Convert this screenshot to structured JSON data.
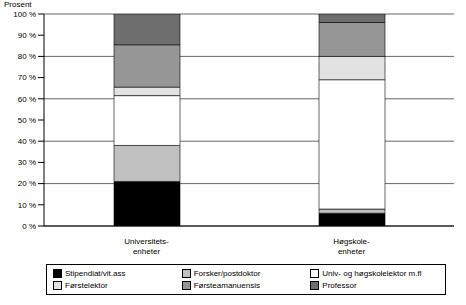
{
  "chart_data": {
    "type": "bar",
    "stacked": true,
    "y_label": "Prosent",
    "categories": [
      "Universitets-\nenheter",
      "Høgskole-\nenheter"
    ],
    "series": [
      {
        "name": "Stipendiat/vit.ass",
        "color": "#000000",
        "values": [
          21,
          6
        ]
      },
      {
        "name": "Forsker/postdoktor",
        "color": "#c0c0c0",
        "values": [
          17,
          2
        ]
      },
      {
        "name": "Univ- og høgskolelektor m.fl",
        "color": "#ffffff",
        "values": [
          23.5,
          61
        ]
      },
      {
        "name": "Førstelektor",
        "color": "#e2e2e2",
        "values": [
          4,
          11
        ]
      },
      {
        "name": "Førsteamanuensis",
        "color": "#969696",
        "values": [
          20,
          16
        ]
      },
      {
        "name": "Professor",
        "color": "#6e6e6e",
        "values": [
          14.5,
          4
        ]
      }
    ],
    "ylim": [
      0,
      100
    ],
    "yticks": [
      {
        "value": 0,
        "label": "0 %"
      },
      {
        "value": 10,
        "label": "10 %"
      },
      {
        "value": 20,
        "label": "20 %"
      },
      {
        "value": 30,
        "label": "30 %"
      },
      {
        "value": 40,
        "label": "40 %"
      },
      {
        "value": 50,
        "label": "50 %"
      },
      {
        "value": 60,
        "label": "60 %"
      },
      {
        "value": 70,
        "label": "70 %"
      },
      {
        "value": 80,
        "label": "80 %"
      },
      {
        "value": 90,
        "label": "90 %"
      },
      {
        "value": 100,
        "label": "100 %"
      }
    ],
    "grid": true,
    "legend": "bottom"
  }
}
